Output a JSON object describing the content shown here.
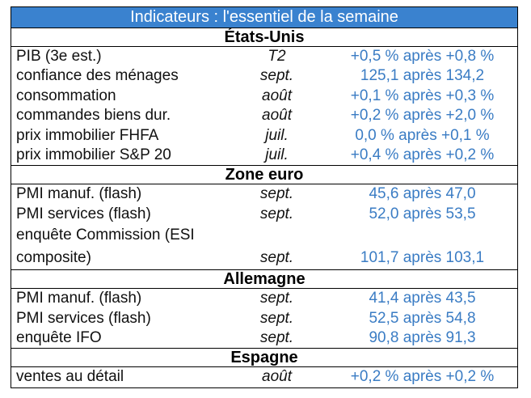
{
  "title": "Indicateurs : l'essentiel de la semaine",
  "colors": {
    "header_bg": "#3a82cf",
    "value_text": "#3a7cc4"
  },
  "sections": [
    {
      "name": "États-Unis",
      "rows": [
        {
          "label": "PIB (3e est.)",
          "period": "T2",
          "value": "+0,5 % après +0,8 %"
        },
        {
          "label": "confiance des ménages",
          "period": "sept.",
          "value": "125,1 après 134,2"
        },
        {
          "label": "consommation",
          "period": "août",
          "value": "+0,1 % après +0,3 %"
        },
        {
          "label": "commandes biens dur.",
          "period": "août",
          "value": "+0,2 % après +2,0 %"
        },
        {
          "label": "prix immobilier FHFA",
          "period": "juil.",
          "value": "0,0 % après +0,1 %"
        },
        {
          "label": "prix immobilier S&P 20",
          "period": "juil.",
          "value": "+0,4 % après +0,2 %"
        }
      ]
    },
    {
      "name": "Zone euro",
      "rows": [
        {
          "label": "PMI manuf. (flash)",
          "period": "sept.",
          "value": "45,6 après 47,0"
        },
        {
          "label": "PMI services (flash)",
          "period": "sept.",
          "value": "52,0 après 53,5"
        },
        {
          "label": "enquête Commission (ESI",
          "label2": "composite)",
          "period": "sept.",
          "value": "101,7 après 103,1"
        }
      ]
    },
    {
      "name": "Allemagne",
      "rows": [
        {
          "label": "PMI manuf. (flash)",
          "period": "sept.",
          "value": "41,4 après 43,5"
        },
        {
          "label": "PMI services (flash)",
          "period": "sept.",
          "value": "52,5 après 54,8"
        },
        {
          "label": "enquête IFO",
          "period": "sept.",
          "value": "90,8 après 91,3"
        }
      ]
    },
    {
      "name": "Espagne",
      "rows": [
        {
          "label": "ventes au détail",
          "period": "août",
          "value": "+0,2 % après +0,2 %"
        }
      ]
    }
  ]
}
